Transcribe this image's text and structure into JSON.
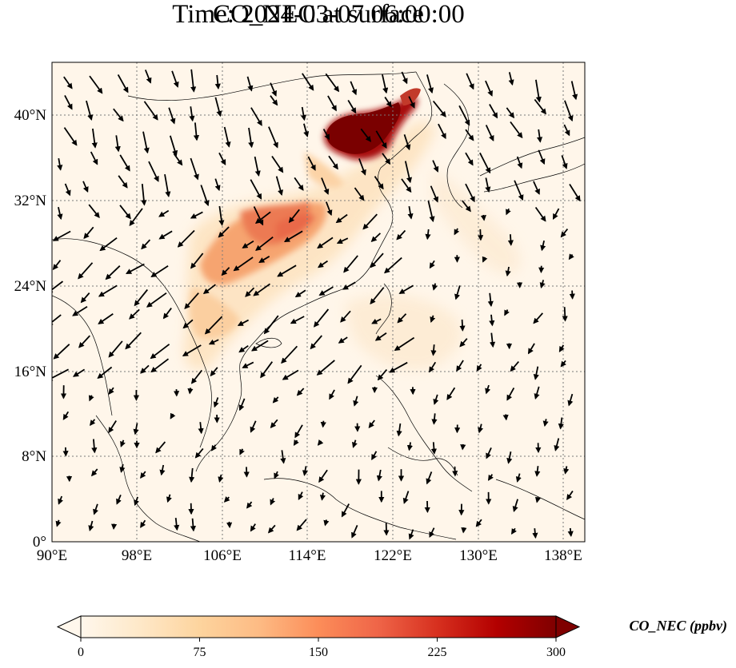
{
  "title": {
    "line1": "CO_NEC at surface",
    "line2": "Time: 2024-03-07 06:00:00"
  },
  "axes": {
    "lon_ticks": [
      "90°E",
      "98°E",
      "106°E",
      "114°E",
      "122°E",
      "130°E",
      "138°E"
    ],
    "lat_ticks": [
      "0°",
      "8°N",
      "16°N",
      "24°N",
      "32°N",
      "40°N"
    ]
  },
  "colorbar": {
    "label": "CO_NEC (ppbv)",
    "ticks": [
      "0",
      "75",
      "150",
      "225",
      "300"
    ],
    "min": 0,
    "max": 300,
    "extend": "both",
    "colormap": "OrRd",
    "colors": [
      "#fff7ec",
      "#fee8c8",
      "#fdd49e",
      "#fdbb84",
      "#fc8d59",
      "#ef6548",
      "#d7301f",
      "#b30000",
      "#7f0000"
    ]
  },
  "map": {
    "extent": {
      "lon_min": 90,
      "lon_max": 140,
      "lat_min": 0,
      "lat_max": 45
    },
    "gridlines": "dotted",
    "wind_vectors": true
  }
}
